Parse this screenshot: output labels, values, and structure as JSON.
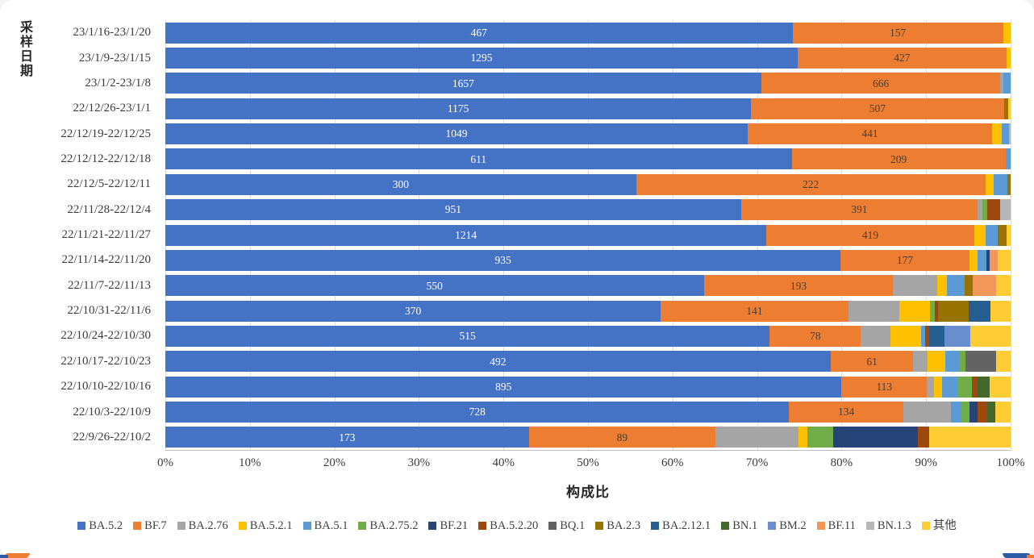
{
  "chart_data": {
    "type": "bar",
    "orientation": "horizontal",
    "stacked": true,
    "unit": "percent",
    "xlabel": "构成比",
    "ylabel": "采样日期",
    "xlim": [
      0,
      100
    ],
    "x_ticks": [
      "0%",
      "10%",
      "20%",
      "30%",
      "40%",
      "50%",
      "60%",
      "70%",
      "80%",
      "90%",
      "100%"
    ],
    "grid": true,
    "legend_position": "bottom",
    "label_colors": {
      "BA.5.2": "#ffffff",
      "BF.7": "#4a3f35"
    },
    "legend": [
      {
        "label": "BA.5.2",
        "color": "#4472C4"
      },
      {
        "label": "BF.7",
        "color": "#ED7D31"
      },
      {
        "label": "BA.2.76",
        "color": "#A5A5A5"
      },
      {
        "label": "BA.5.2.1",
        "color": "#FFC000"
      },
      {
        "label": "BA.5.1",
        "color": "#5B9BD5"
      },
      {
        "label": "BA.2.75.2",
        "color": "#70AD47"
      },
      {
        "label": "BF.21",
        "color": "#264478"
      },
      {
        "label": "BA.5.2.20",
        "color": "#9E480E"
      },
      {
        "label": "BQ.1",
        "color": "#636363"
      },
      {
        "label": "BA.2.3",
        "color": "#997300"
      },
      {
        "label": "BA.2.12.1",
        "color": "#255E91"
      },
      {
        "label": "BN.1",
        "color": "#43682B"
      },
      {
        "label": "BM.2",
        "color": "#698ED0"
      },
      {
        "label": "BF.11",
        "color": "#F1975A"
      },
      {
        "label": "BN.1.3",
        "color": "#B7B7B7"
      },
      {
        "label": "其他",
        "color": "#FFCD33"
      }
    ],
    "categories": [
      "23/1/16-23/1/20",
      "23/1/9-23/1/15",
      "23/1/2-23/1/8",
      "22/12/26-23/1/1",
      "22/12/19-22/12/25",
      "22/12/12-22/12/18",
      "22/12/5-22/12/11",
      "22/11/28-22/12/4",
      "22/11/21-22/11/27",
      "22/11/14-22/11/20",
      "22/11/7-22/11/13",
      "22/10/31-22/11/6",
      "22/10/24-22/10/30",
      "22/10/17-22/10/23",
      "22/10/10-22/10/16",
      "22/10/3-22/10/9",
      "22/9/26-22/10/2"
    ],
    "rows": [
      {
        "category": "23/1/16-23/1/20",
        "segments": [
          {
            "series": "BA.5.2",
            "pct": 74.2,
            "label": "467"
          },
          {
            "series": "BF.7",
            "pct": 24.9,
            "label": "157"
          },
          {
            "series": "BA.5.2.1",
            "pct": 0.9
          }
        ]
      },
      {
        "category": "23/1/9-23/1/15",
        "segments": [
          {
            "series": "BA.5.2",
            "pct": 74.8,
            "label": "1295"
          },
          {
            "series": "BF.7",
            "pct": 24.7,
            "label": "427"
          },
          {
            "series": "BA.5.2.1",
            "pct": 0.5
          }
        ]
      },
      {
        "category": "23/1/2-23/1/8",
        "segments": [
          {
            "series": "BA.5.2",
            "pct": 70.5,
            "label": "1657"
          },
          {
            "series": "BF.7",
            "pct": 28.3,
            "label": "666"
          },
          {
            "series": "BA.2.76",
            "pct": 0.3
          },
          {
            "series": "BA.5.1",
            "pct": 0.9
          }
        ]
      },
      {
        "category": "22/12/26-23/1/1",
        "segments": [
          {
            "series": "BA.5.2",
            "pct": 69.3,
            "label": "1175"
          },
          {
            "series": "BF.7",
            "pct": 29.9,
            "label": "507"
          },
          {
            "series": "BA.2.3",
            "pct": 0.5
          },
          {
            "series": "其他",
            "pct": 0.3
          }
        ]
      },
      {
        "category": "22/12/19-22/12/25",
        "segments": [
          {
            "series": "BA.5.2",
            "pct": 68.9,
            "label": "1049"
          },
          {
            "series": "BF.7",
            "pct": 28.9,
            "label": "441"
          },
          {
            "series": "BA.5.2.1",
            "pct": 1.2
          },
          {
            "series": "BA.5.1",
            "pct": 0.8
          },
          {
            "series": "BN.1.3",
            "pct": 0.2
          }
        ]
      },
      {
        "category": "22/12/12-22/12/18",
        "segments": [
          {
            "series": "BA.5.2",
            "pct": 74.1,
            "label": "611"
          },
          {
            "series": "BF.7",
            "pct": 25.3,
            "label": "209"
          },
          {
            "series": "BA.5.1",
            "pct": 0.6
          }
        ]
      },
      {
        "category": "22/12/5-22/12/11",
        "segments": [
          {
            "series": "BA.5.2",
            "pct": 55.7,
            "label": "300"
          },
          {
            "series": "BF.7",
            "pct": 41.3,
            "label": "222"
          },
          {
            "series": "BA.5.2.1",
            "pct": 1.0
          },
          {
            "series": "BA.5.1",
            "pct": 1.6
          },
          {
            "series": "BA.2.3",
            "pct": 0.4
          }
        ]
      },
      {
        "category": "22/11/28-22/12/4",
        "segments": [
          {
            "series": "BA.5.2",
            "pct": 68.1,
            "label": "951"
          },
          {
            "series": "BF.7",
            "pct": 28.0,
            "label": "391"
          },
          {
            "series": "BA.2.76",
            "pct": 0.6
          },
          {
            "series": "BA.2.75.2",
            "pct": 0.5
          },
          {
            "series": "BA.5.2.20",
            "pct": 1.6
          },
          {
            "series": "BN.1.3",
            "pct": 1.2
          }
        ]
      },
      {
        "category": "22/11/21-22/11/27",
        "segments": [
          {
            "series": "BA.5.2",
            "pct": 71.1,
            "label": "1214"
          },
          {
            "series": "BF.7",
            "pct": 24.6,
            "label": "419"
          },
          {
            "series": "BA.5.2.1",
            "pct": 1.3
          },
          {
            "series": "BA.5.1",
            "pct": 1.5
          },
          {
            "series": "BA.2.3",
            "pct": 1.0
          },
          {
            "series": "其他",
            "pct": 0.5
          }
        ]
      },
      {
        "category": "22/11/14-22/11/20",
        "segments": [
          {
            "series": "BA.5.2",
            "pct": 79.9,
            "label": "935"
          },
          {
            "series": "BF.7",
            "pct": 15.2,
            "label": "177"
          },
          {
            "series": "BA.5.2.1",
            "pct": 1.0
          },
          {
            "series": "BA.5.1",
            "pct": 1.0
          },
          {
            "series": "BF.21",
            "pct": 0.4
          },
          {
            "series": "BF.11",
            "pct": 1.0
          },
          {
            "series": "其他",
            "pct": 1.5
          }
        ]
      },
      {
        "category": "22/11/7-22/11/13",
        "segments": [
          {
            "series": "BA.5.2",
            "pct": 63.7,
            "label": "550"
          },
          {
            "series": "BF.7",
            "pct": 22.4,
            "label": "193"
          },
          {
            "series": "BA.2.76",
            "pct": 5.2
          },
          {
            "series": "BA.5.2.1",
            "pct": 1.2
          },
          {
            "series": "BA.5.1",
            "pct": 2.1
          },
          {
            "series": "BA.2.3",
            "pct": 0.9
          },
          {
            "series": "BF.11",
            "pct": 2.8
          },
          {
            "series": "其他",
            "pct": 1.7
          }
        ]
      },
      {
        "category": "22/10/31-22/11/6",
        "segments": [
          {
            "series": "BA.5.2",
            "pct": 58.6,
            "label": "370"
          },
          {
            "series": "BF.7",
            "pct": 22.2,
            "label": "141"
          },
          {
            "series": "BA.2.76",
            "pct": 6.0
          },
          {
            "series": "BA.5.2.1",
            "pct": 3.7
          },
          {
            "series": "BA.2.75.2",
            "pct": 0.5
          },
          {
            "series": "BA.5.2.20",
            "pct": 0.4
          },
          {
            "series": "BA.2.3",
            "pct": 3.6
          },
          {
            "series": "BA.2.12.1",
            "pct": 2.6
          },
          {
            "series": "其他",
            "pct": 2.4
          }
        ]
      },
      {
        "category": "22/10/24-22/10/30",
        "segments": [
          {
            "series": "BA.5.2",
            "pct": 71.5,
            "label": "515"
          },
          {
            "series": "BF.7",
            "pct": 10.8,
            "label": "78"
          },
          {
            "series": "BA.2.76",
            "pct": 3.5
          },
          {
            "series": "BA.5.2.1",
            "pct": 3.6
          },
          {
            "series": "BA.5.1",
            "pct": 0.5
          },
          {
            "series": "BA.5.2.20",
            "pct": 0.5
          },
          {
            "series": "BA.2.12.1",
            "pct": 1.8
          },
          {
            "series": "BM.2",
            "pct": 3.0
          },
          {
            "series": "其他",
            "pct": 4.8
          }
        ]
      },
      {
        "category": "22/10/17-22/10/23",
        "segments": [
          {
            "series": "BA.5.2",
            "pct": 78.7,
            "label": "492"
          },
          {
            "series": "BF.7",
            "pct": 9.8,
            "label": "61"
          },
          {
            "series": "BA.2.76",
            "pct": 1.7
          },
          {
            "series": "BA.5.2.1",
            "pct": 2.1
          },
          {
            "series": "BA.5.1",
            "pct": 1.7
          },
          {
            "series": "BA.2.75.2",
            "pct": 0.7
          },
          {
            "series": "BQ.1",
            "pct": 3.6
          },
          {
            "series": "其他",
            "pct": 1.7
          }
        ]
      },
      {
        "category": "22/10/10-22/10/16",
        "segments": [
          {
            "series": "BA.5.2",
            "pct": 80.0,
            "label": "895"
          },
          {
            "series": "BF.7",
            "pct": 10.1,
            "label": "113"
          },
          {
            "series": "BA.2.76",
            "pct": 0.8
          },
          {
            "series": "BA.5.2.1",
            "pct": 1.0
          },
          {
            "series": "BA.5.1",
            "pct": 1.9
          },
          {
            "series": "BA.2.75.2",
            "pct": 1.6
          },
          {
            "series": "BA.5.2.20",
            "pct": 0.7
          },
          {
            "series": "BN.1",
            "pct": 1.4
          },
          {
            "series": "其他",
            "pct": 2.5
          }
        ]
      },
      {
        "category": "22/10/3-22/10/9",
        "segments": [
          {
            "series": "BA.5.2",
            "pct": 73.8,
            "label": "728"
          },
          {
            "series": "BF.7",
            "pct": 13.5,
            "label": "134"
          },
          {
            "series": "BA.2.76",
            "pct": 5.6
          },
          {
            "series": "BA.5.1",
            "pct": 1.2
          },
          {
            "series": "BA.2.75.2",
            "pct": 1.0
          },
          {
            "series": "BF.21",
            "pct": 1.0
          },
          {
            "series": "BA.5.2.20",
            "pct": 1.1
          },
          {
            "series": "BN.1",
            "pct": 1.0
          },
          {
            "series": "其他",
            "pct": 1.8
          }
        ]
      },
      {
        "category": "22/9/26-22/10/2",
        "segments": [
          {
            "series": "BA.5.2",
            "pct": 43.0,
            "label": "173"
          },
          {
            "series": "BF.7",
            "pct": 22.1,
            "label": "89"
          },
          {
            "series": "BA.2.76",
            "pct": 9.8
          },
          {
            "series": "BA.5.2.1",
            "pct": 1.1
          },
          {
            "series": "BA.2.75.2",
            "pct": 3.0
          },
          {
            "series": "BF.21",
            "pct": 10.0
          },
          {
            "series": "BA.5.2.20",
            "pct": 1.4
          },
          {
            "series": "其他",
            "pct": 9.6
          }
        ]
      }
    ]
  }
}
